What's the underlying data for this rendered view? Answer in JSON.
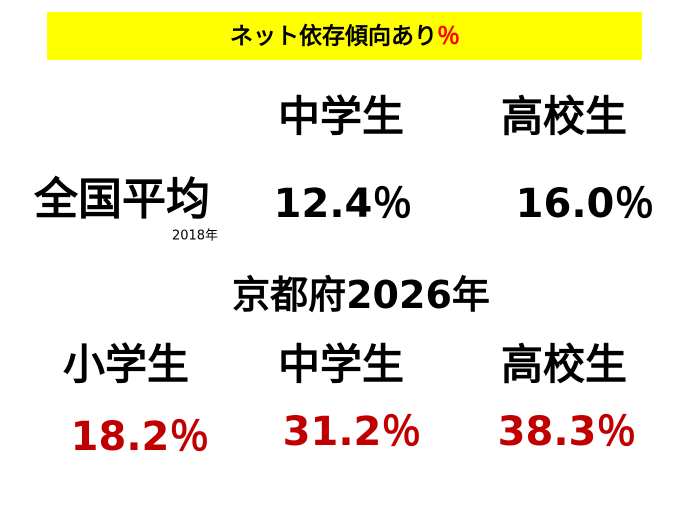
{
  "title": {
    "text": "ネット依存傾向あり",
    "unit": "％"
  },
  "national": {
    "label": "全国平均",
    "year": "2018年",
    "headers": [
      "中学生",
      "高校生"
    ],
    "values": [
      "12.4％",
      "16.0％"
    ]
  },
  "kyoto": {
    "label": "京都府2026年",
    "headers": [
      "小学生",
      "中学生",
      "高校生"
    ],
    "values": [
      "18.2％",
      "31.2％",
      "38.3％"
    ]
  }
}
